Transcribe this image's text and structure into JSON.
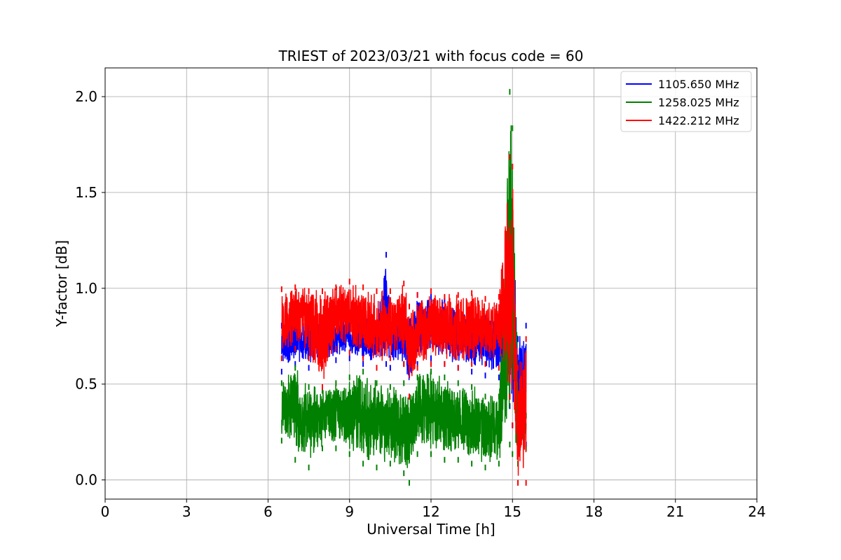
{
  "chart_data": {
    "type": "line",
    "title": "TRIEST of 2023/03/21 with focus code = 60",
    "xlabel": "Universal Time [h]",
    "ylabel": "Y-factor [dB]",
    "xlim": [
      0,
      24
    ],
    "ylim": [
      -0.1,
      2.15
    ],
    "xticks": [
      0,
      3,
      6,
      9,
      12,
      15,
      18,
      21,
      24
    ],
    "xtick_labels": [
      "0",
      "3",
      "6",
      "9",
      "12",
      "15",
      "18",
      "21",
      "24"
    ],
    "yticks": [
      0.0,
      0.5,
      1.0,
      1.5,
      2.0
    ],
    "ytick_labels": [
      "0.0",
      "0.5",
      "1.0",
      "1.5",
      "2.0"
    ],
    "grid": true,
    "legend_position": "top-right",
    "series": [
      {
        "name": "1105.650 MHz",
        "color": "#0000ff",
        "envelope": [
          {
            "x": 6.5,
            "low": 0.58,
            "high": 0.82
          },
          {
            "x": 7.0,
            "low": 0.62,
            "high": 0.84
          },
          {
            "x": 7.5,
            "low": 0.6,
            "high": 0.86
          },
          {
            "x": 8.0,
            "low": 0.62,
            "high": 0.85
          },
          {
            "x": 8.5,
            "low": 0.64,
            "high": 0.84
          },
          {
            "x": 9.0,
            "low": 0.65,
            "high": 0.86
          },
          {
            "x": 9.5,
            "low": 0.62,
            "high": 0.85
          },
          {
            "x": 10.0,
            "low": 0.6,
            "high": 0.84
          },
          {
            "x": 10.35,
            "low": 0.62,
            "high": 1.19
          },
          {
            "x": 10.5,
            "low": 0.6,
            "high": 0.85
          },
          {
            "x": 11.0,
            "low": 0.62,
            "high": 0.86
          },
          {
            "x": 11.2,
            "low": 0.45,
            "high": 0.84
          },
          {
            "x": 11.5,
            "low": 0.62,
            "high": 0.98
          },
          {
            "x": 12.0,
            "low": 0.65,
            "high": 0.97
          },
          {
            "x": 12.5,
            "low": 0.62,
            "high": 0.95
          },
          {
            "x": 13.0,
            "low": 0.6,
            "high": 0.92
          },
          {
            "x": 13.5,
            "low": 0.58,
            "high": 0.88
          },
          {
            "x": 14.0,
            "low": 0.56,
            "high": 0.86
          },
          {
            "x": 14.5,
            "low": 0.55,
            "high": 0.84
          },
          {
            "x": 14.8,
            "low": 0.55,
            "high": 0.85
          },
          {
            "x": 14.9,
            "low": 0.4,
            "high": 1.48
          },
          {
            "x": 15.0,
            "low": 0.3,
            "high": 1.35
          },
          {
            "x": 15.2,
            "low": 0.3,
            "high": 0.75
          },
          {
            "x": 15.5,
            "low": 0.2,
            "high": 0.82
          }
        ]
      },
      {
        "name": "1258.025 MHz",
        "color": "#008000",
        "envelope": [
          {
            "x": 6.5,
            "low": 0.22,
            "high": 0.52
          },
          {
            "x": 7.0,
            "low": 0.12,
            "high": 0.6
          },
          {
            "x": 7.5,
            "low": 0.08,
            "high": 0.5
          },
          {
            "x": 8.0,
            "low": 0.18,
            "high": 0.48
          },
          {
            "x": 8.5,
            "low": 0.18,
            "high": 0.52
          },
          {
            "x": 9.0,
            "low": 0.15,
            "high": 0.55
          },
          {
            "x": 9.5,
            "low": 0.1,
            "high": 0.58
          },
          {
            "x": 10.0,
            "low": 0.08,
            "high": 0.52
          },
          {
            "x": 10.5,
            "low": 0.1,
            "high": 0.5
          },
          {
            "x": 11.0,
            "low": 0.05,
            "high": 0.52
          },
          {
            "x": 11.2,
            "low": 0.0,
            "high": 0.45
          },
          {
            "x": 11.5,
            "low": 0.15,
            "high": 0.55
          },
          {
            "x": 12.0,
            "low": 0.15,
            "high": 0.58
          },
          {
            "x": 12.5,
            "low": 0.12,
            "high": 0.55
          },
          {
            "x": 13.0,
            "low": 0.12,
            "high": 0.52
          },
          {
            "x": 13.5,
            "low": 0.1,
            "high": 0.5
          },
          {
            "x": 14.0,
            "low": 0.08,
            "high": 0.45
          },
          {
            "x": 14.5,
            "low": 0.1,
            "high": 0.45
          },
          {
            "x": 14.9,
            "low": 0.2,
            "high": 2.04
          },
          {
            "x": 15.0,
            "low": 0.15,
            "high": 1.85
          },
          {
            "x": 15.2,
            "low": 0.1,
            "high": 0.45
          },
          {
            "x": 15.5,
            "low": 0.18,
            "high": 0.35
          }
        ]
      },
      {
        "name": "1422.212 MHz",
        "color": "#ff0000",
        "envelope": [
          {
            "x": 6.5,
            "low": 0.65,
            "high": 1.01
          },
          {
            "x": 7.0,
            "low": 0.7,
            "high": 1.02
          },
          {
            "x": 7.5,
            "low": 0.65,
            "high": 1.0
          },
          {
            "x": 8.0,
            "low": 0.5,
            "high": 1.0
          },
          {
            "x": 8.5,
            "low": 0.7,
            "high": 1.02
          },
          {
            "x": 9.0,
            "low": 0.68,
            "high": 1.05
          },
          {
            "x": 9.5,
            "low": 0.65,
            "high": 1.02
          },
          {
            "x": 10.0,
            "low": 0.6,
            "high": 1.0
          },
          {
            "x": 10.5,
            "low": 0.65,
            "high": 1.0
          },
          {
            "x": 11.0,
            "low": 0.62,
            "high": 1.04
          },
          {
            "x": 11.2,
            "low": 0.45,
            "high": 0.92
          },
          {
            "x": 11.5,
            "low": 0.6,
            "high": 0.98
          },
          {
            "x": 12.0,
            "low": 0.62,
            "high": 1.0
          },
          {
            "x": 12.5,
            "low": 0.62,
            "high": 0.97
          },
          {
            "x": 13.0,
            "low": 0.6,
            "high": 0.98
          },
          {
            "x": 13.5,
            "low": 0.62,
            "high": 0.99
          },
          {
            "x": 14.0,
            "low": 0.62,
            "high": 0.96
          },
          {
            "x": 14.5,
            "low": 0.6,
            "high": 0.97
          },
          {
            "x": 14.9,
            "low": 0.45,
            "high": 1.7
          },
          {
            "x": 15.0,
            "low": 0.3,
            "high": 1.65
          },
          {
            "x": 15.2,
            "low": 0.0,
            "high": 0.6
          },
          {
            "x": 15.5,
            "low": 0.0,
            "high": 0.75
          }
        ]
      }
    ]
  }
}
